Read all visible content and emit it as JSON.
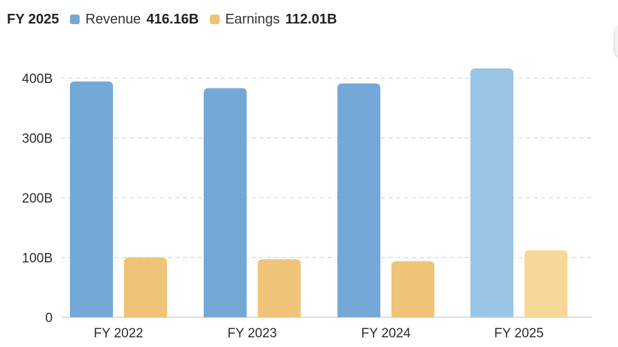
{
  "header": {
    "period": "FY 2025",
    "legend": [
      {
        "name": "Revenue",
        "value": "416.16B",
        "color": "#74A9D7"
      },
      {
        "name": "Earnings",
        "value": "112.01B",
        "color": "#EFC478"
      }
    ]
  },
  "chart_data": {
    "type": "bar",
    "categories": [
      "FY 2022",
      "FY 2023",
      "FY 2024",
      "FY 2025"
    ],
    "series": [
      {
        "name": "Revenue",
        "values": [
          394.3,
          383.3,
          391.0,
          416.16
        ],
        "color": "#74A9D7",
        "highlight_color": "#99C4E6"
      },
      {
        "name": "Earnings",
        "values": [
          99.8,
          97.0,
          93.7,
          112.01
        ],
        "color": "#EFC478",
        "highlight_color": "#F8D899"
      }
    ],
    "highlight_category": "FY 2025",
    "ylim": [
      0,
      400
    ],
    "yticks": [
      {
        "value": 0,
        "label": "0"
      },
      {
        "value": 100,
        "label": "100B"
      },
      {
        "value": 200,
        "label": "200B"
      },
      {
        "value": 300,
        "label": "300B"
      },
      {
        "value": 400,
        "label": "400B"
      }
    ],
    "grid": true,
    "legend_position": "top-left",
    "title": "",
    "xlabel": "",
    "ylabel": ""
  }
}
